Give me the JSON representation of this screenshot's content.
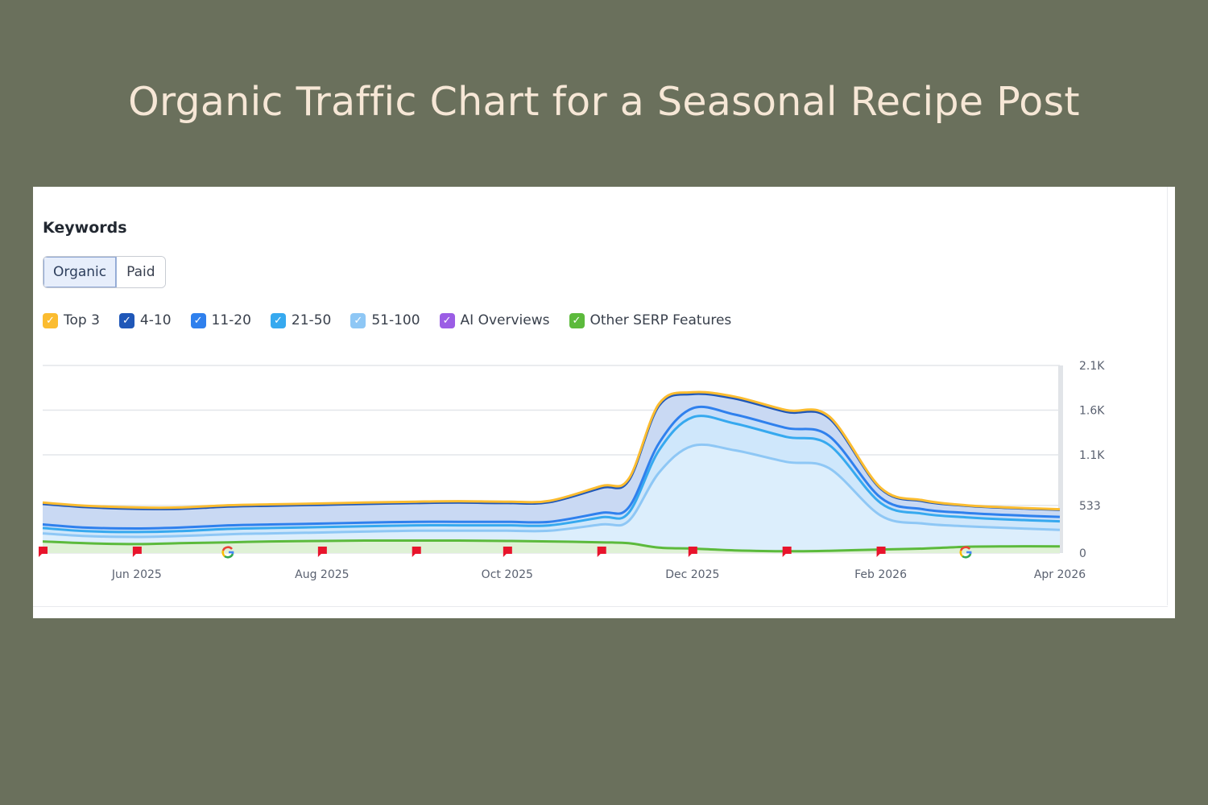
{
  "page": {
    "title": "Organic Traffic Chart for a Seasonal Recipe Post"
  },
  "card": {
    "section_title": "Keywords",
    "tabs": [
      {
        "label": "Organic",
        "active": true
      },
      {
        "label": "Paid",
        "active": false
      }
    ]
  },
  "legend": [
    {
      "label": "Top 3",
      "color": "#fbbc30",
      "checked": true
    },
    {
      "label": "4-10",
      "color": "#1f57b8",
      "checked": true
    },
    {
      "label": "11-20",
      "color": "#2f80ed",
      "checked": true
    },
    {
      "label": "21-50",
      "color": "#36a9ef",
      "checked": true
    },
    {
      "label": "51-100",
      "color": "#8ec7f5",
      "checked": true
    },
    {
      "label": "AI Overviews",
      "color": "#9b5de5",
      "checked": true
    },
    {
      "label": "Other SERP Features",
      "color": "#5cba3c",
      "checked": true
    }
  ],
  "chart_data": {
    "type": "area",
    "x": [
      "2025-05-01",
      "2025-05-15",
      "2025-06-01",
      "2025-06-15",
      "2025-07-01",
      "2025-07-15",
      "2025-08-01",
      "2025-08-15",
      "2025-09-01",
      "2025-09-15",
      "2025-10-01",
      "2025-10-15",
      "2025-11-01",
      "2025-11-10",
      "2025-11-20",
      "2025-12-01",
      "2025-12-15",
      "2026-01-01",
      "2026-01-15",
      "2026-02-01",
      "2026-02-15",
      "2026-03-01",
      "2026-03-15",
      "2026-04-01"
    ],
    "x_tick_labels": [
      "Jun 2025",
      "Aug 2025",
      "Oct 2025",
      "Dec 2025",
      "Feb 2026",
      "Apr 2026"
    ],
    "x_tick_dates": [
      "2025-06-01",
      "2025-08-01",
      "2025-10-01",
      "2025-12-01",
      "2026-02-01",
      "2026-04-01"
    ],
    "y_ticks": [
      0,
      533,
      1100,
      1600,
      2100
    ],
    "y_tick_labels": [
      "0",
      "533",
      "1.1K",
      "1.6K",
      "2.1K"
    ],
    "ylim": [
      0,
      2100
    ],
    "grid": true,
    "stacked": true,
    "series": [
      {
        "name": "51-100",
        "color": "#8ec7f5",
        "values": [
          220,
          190,
          180,
          190,
          210,
          220,
          230,
          240,
          250,
          250,
          250,
          250,
          320,
          360,
          900,
          1200,
          1150,
          1020,
          950,
          420,
          330,
          300,
          280,
          260
        ]
      },
      {
        "name": "21-50",
        "color": "#36a9ef",
        "values": [
          60,
          55,
          55,
          55,
          60,
          60,
          60,
          60,
          60,
          60,
          60,
          60,
          80,
          90,
          250,
          320,
          300,
          280,
          260,
          140,
          110,
          100,
          95,
          95
        ]
      },
      {
        "name": "11-20",
        "color": "#2f80ed",
        "values": [
          40,
          40,
          40,
          40,
          40,
          40,
          40,
          40,
          40,
          40,
          40,
          40,
          50,
          60,
          80,
          100,
          100,
          100,
          100,
          60,
          50,
          50,
          50,
          50
        ]
      },
      {
        "name": "4-10",
        "color": "#1f57b8",
        "values": [
          230,
          230,
          220,
          210,
          210,
          210,
          210,
          210,
          210,
          215,
          210,
          220,
          280,
          300,
          420,
          160,
          180,
          180,
          200,
          100,
          90,
          80,
          80,
          80
        ]
      },
      {
        "name": "Top 3",
        "color": "#fbbc30",
        "values": [
          15,
          15,
          15,
          15,
          15,
          15,
          15,
          15,
          15,
          15,
          15,
          15,
          20,
          20,
          20,
          20,
          20,
          20,
          20,
          10,
          10,
          5,
          5,
          5
        ]
      },
      {
        "name": "Other SERP Features",
        "color": "#5cba3c",
        "stack": false,
        "values": [
          130,
          110,
          100,
          110,
          120,
          130,
          135,
          140,
          140,
          140,
          135,
          130,
          120,
          110,
          60,
          50,
          30,
          20,
          25,
          40,
          50,
          70,
          75,
          75
        ]
      }
    ],
    "event_markers": [
      {
        "date": "2025-05-01",
        "icon": "flag-icon"
      },
      {
        "date": "2025-06-01",
        "icon": "flag-icon"
      },
      {
        "date": "2025-07-01",
        "icon": "google-icon"
      },
      {
        "date": "2025-08-01",
        "icon": "flag-icon"
      },
      {
        "date": "2025-09-01",
        "icon": "flag-icon"
      },
      {
        "date": "2025-10-01",
        "icon": "flag-icon"
      },
      {
        "date": "2025-11-01",
        "icon": "flag-icon"
      },
      {
        "date": "2025-12-01",
        "icon": "flag-icon"
      },
      {
        "date": "2026-01-01",
        "icon": "flag-icon"
      },
      {
        "date": "2026-02-01",
        "icon": "flag-icon"
      },
      {
        "date": "2026-03-01",
        "icon": "google-icon"
      }
    ]
  }
}
